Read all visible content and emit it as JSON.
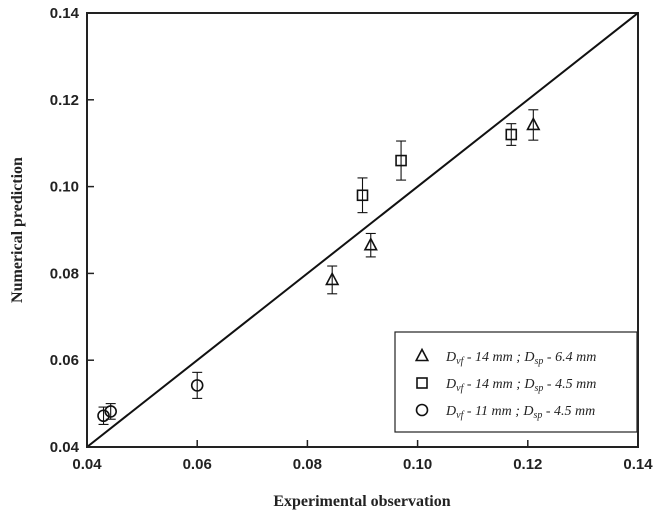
{
  "chart_data": {
    "type": "scatter",
    "xlabel": "Experimental observation",
    "ylabel": "Numerical prediction",
    "xlim": [
      0.04,
      0.14
    ],
    "ylim": [
      0.04,
      0.14
    ],
    "x_ticks": [
      "0.04",
      "0.06",
      "0.08",
      "0.10",
      "0.12",
      "0.14"
    ],
    "y_ticks": [
      "0.04",
      "0.06",
      "0.08",
      "0.10",
      "0.12",
      "0.14"
    ],
    "grid": false,
    "legend_position": "bottom-right",
    "reference_line": {
      "type": "y=x",
      "from": [
        0.04,
        0.04
      ],
      "to": [
        0.14,
        0.14
      ]
    },
    "series": [
      {
        "marker": "triangle",
        "legend": {
          "d1": "D",
          "s1": "vf",
          "t1": " - 14 mm ; ",
          "d2": "D",
          "s2": "sp",
          "t2": " - 6.4 mm"
        },
        "points": [
          {
            "x": 0.0845,
            "y": 0.0785,
            "err": 0.0032
          },
          {
            "x": 0.0915,
            "y": 0.0865,
            "err": 0.0027
          },
          {
            "x": 0.121,
            "y": 0.1142,
            "err": 0.0035
          }
        ]
      },
      {
        "marker": "square",
        "legend": {
          "d1": "D",
          "s1": "vf",
          "t1": " - 14 mm ; ",
          "d2": "D",
          "s2": "sp",
          "t2": " - 4.5 mm"
        },
        "points": [
          {
            "x": 0.09,
            "y": 0.098,
            "err": 0.004
          },
          {
            "x": 0.097,
            "y": 0.106,
            "err": 0.0045
          },
          {
            "x": 0.117,
            "y": 0.112,
            "err": 0.0025
          }
        ]
      },
      {
        "marker": "circle",
        "legend": {
          "d1": "D",
          "s1": "vf",
          "t1": " - 11 mm ; ",
          "d2": "D",
          "s2": "sp",
          "t2": " - 4.5 mm"
        },
        "points": [
          {
            "x": 0.043,
            "y": 0.0472,
            "err": 0.002
          },
          {
            "x": 0.0443,
            "y": 0.0482,
            "err": 0.0018
          },
          {
            "x": 0.06,
            "y": 0.0542,
            "err": 0.003
          }
        ]
      }
    ]
  }
}
